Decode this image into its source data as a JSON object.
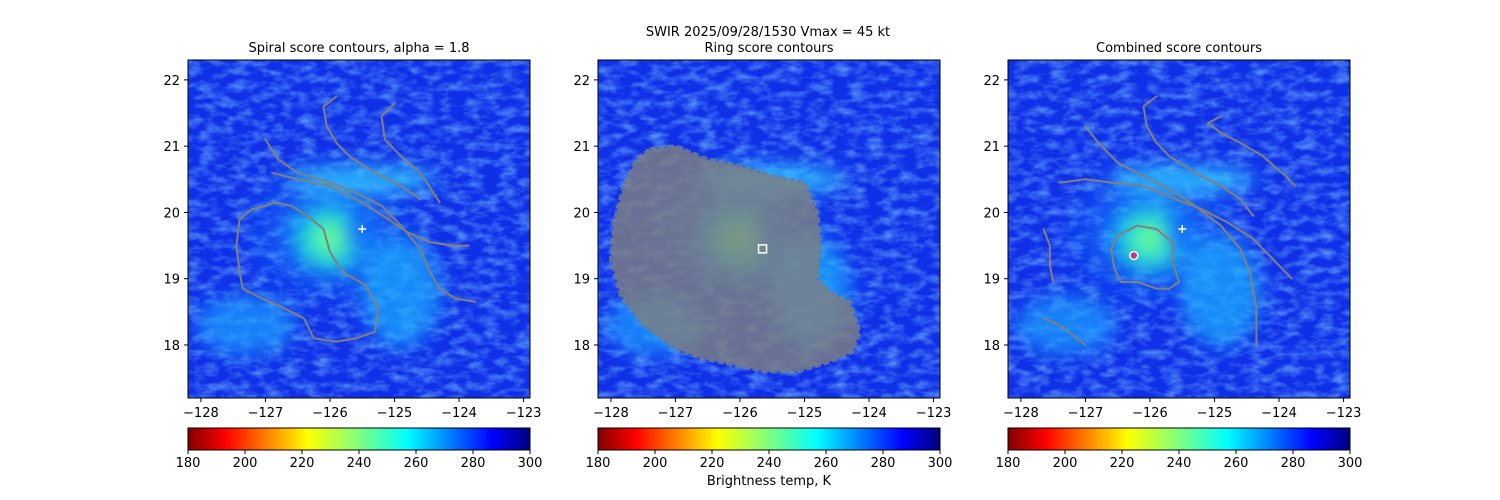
{
  "figure": {
    "suptitle_line1": "SWIR  2025/09/28/1530    Vmax = 45 kt",
    "colorbar_label": "Brightness temp, K"
  },
  "colors": {
    "contour": "#808080",
    "marker_white": "#ffffff",
    "marker_purple": "#a040a0",
    "colormap": "jet_reversed"
  },
  "chart_data": [
    {
      "type": "heatmap",
      "title": "Spiral score contours, alpha =  1.8",
      "xlabel": "",
      "ylabel": "",
      "xlim": [
        -128.2,
        -122.9
      ],
      "ylim": [
        17.2,
        22.3
      ],
      "xticks": [
        -128,
        -127,
        -126,
        -125,
        -124,
        -123
      ],
      "yticks": [
        18,
        19,
        20,
        21,
        22
      ],
      "colorbar": {
        "min": 180,
        "max": 300,
        "ticks": [
          180,
          200,
          220,
          240,
          260,
          280,
          300
        ],
        "label": ""
      },
      "markers": [
        {
          "lon": -125.5,
          "lat": 19.75,
          "symbol": "plus"
        }
      ],
      "contours": [
        [
          [
            -125.9,
            21.75
          ],
          [
            -126.1,
            21.6
          ],
          [
            -126.05,
            21.3
          ],
          [
            -125.9,
            21.05
          ],
          [
            -125.7,
            20.85
          ],
          [
            -125.3,
            20.6
          ],
          [
            -124.9,
            20.4
          ],
          [
            -124.6,
            20.2
          ]
        ],
        [
          [
            -125.0,
            21.65
          ],
          [
            -125.2,
            21.45
          ],
          [
            -125.15,
            21.1
          ],
          [
            -124.9,
            20.85
          ],
          [
            -124.6,
            20.6
          ],
          [
            -124.3,
            20.15
          ]
        ],
        [
          [
            -127.0,
            21.1
          ],
          [
            -126.8,
            20.8
          ],
          [
            -126.5,
            20.6
          ],
          [
            -126.0,
            20.45
          ],
          [
            -125.6,
            20.3
          ],
          [
            -125.2,
            20.1
          ],
          [
            -124.9,
            19.8
          ],
          [
            -124.6,
            19.45
          ],
          [
            -124.45,
            19.1
          ],
          [
            -124.3,
            18.85
          ],
          [
            -124.05,
            18.7
          ],
          [
            -123.75,
            18.65
          ]
        ],
        [
          [
            -126.9,
            20.6
          ],
          [
            -126.5,
            20.5
          ],
          [
            -126.0,
            20.4
          ],
          [
            -125.5,
            20.15
          ],
          [
            -125.1,
            19.9
          ],
          [
            -124.8,
            19.7
          ],
          [
            -124.45,
            19.55
          ],
          [
            -124.1,
            19.5
          ],
          [
            -123.85,
            19.5
          ]
        ],
        [
          [
            -127.0,
            20.1
          ],
          [
            -127.2,
            20.05
          ],
          [
            -127.4,
            19.9
          ],
          [
            -127.45,
            19.5
          ],
          [
            -127.4,
            19.1
          ],
          [
            -127.35,
            18.85
          ],
          [
            -127.05,
            18.7
          ],
          [
            -126.7,
            18.55
          ],
          [
            -126.4,
            18.4
          ],
          [
            -126.25,
            18.1
          ],
          [
            -125.9,
            18.05
          ],
          [
            -125.6,
            18.1
          ],
          [
            -125.3,
            18.2
          ],
          [
            -125.25,
            18.55
          ],
          [
            -125.45,
            18.9
          ],
          [
            -125.8,
            19.1
          ],
          [
            -126.0,
            19.4
          ],
          [
            -126.1,
            19.75
          ],
          [
            -126.35,
            19.95
          ],
          [
            -126.6,
            20.1
          ],
          [
            -126.85,
            20.15
          ],
          [
            -127.0,
            20.1
          ]
        ]
      ]
    },
    {
      "type": "heatmap",
      "title": "Ring score contours",
      "xlabel": "",
      "ylabel": "",
      "xlim": [
        -128.2,
        -122.9
      ],
      "ylim": [
        17.2,
        22.3
      ],
      "xticks": [
        -128,
        -127,
        -126,
        -125,
        -124,
        -123
      ],
      "yticks": [
        18,
        19,
        20,
        21,
        22
      ],
      "colorbar": {
        "min": 180,
        "max": 300,
        "ticks": [
          180,
          200,
          220,
          240,
          260,
          280,
          300
        ],
        "label": "Brightness temp, K"
      },
      "markers": [
        {
          "lon": -125.65,
          "lat": 19.45,
          "symbol": "square"
        }
      ],
      "ring_region": [
        [
          -127.4,
          20.95
        ],
        [
          -127.0,
          21.0
        ],
        [
          -126.5,
          20.8
        ],
        [
          -126.0,
          20.7
        ],
        [
          -125.5,
          20.55
        ],
        [
          -125.0,
          20.45
        ],
        [
          -124.8,
          20.0
        ],
        [
          -124.75,
          19.5
        ],
        [
          -124.8,
          19.0
        ],
        [
          -124.6,
          18.8
        ],
        [
          -124.3,
          18.65
        ],
        [
          -124.15,
          18.2
        ],
        [
          -124.25,
          17.9
        ],
        [
          -124.6,
          17.75
        ],
        [
          -125.1,
          17.6
        ],
        [
          -125.6,
          17.6
        ],
        [
          -126.1,
          17.7
        ],
        [
          -126.6,
          17.8
        ],
        [
          -127.0,
          17.95
        ],
        [
          -127.5,
          18.3
        ],
        [
          -127.85,
          18.75
        ],
        [
          -128.0,
          19.3
        ],
        [
          -127.95,
          19.85
        ],
        [
          -127.8,
          20.4
        ],
        [
          -127.6,
          20.8
        ],
        [
          -127.4,
          20.95
        ]
      ],
      "contours": []
    },
    {
      "type": "heatmap",
      "title": "Combined score contours",
      "xlabel": "",
      "ylabel": "",
      "xlim": [
        -128.2,
        -122.9
      ],
      "ylim": [
        17.2,
        22.3
      ],
      "xticks": [
        -128,
        -127,
        -126,
        -125,
        -124,
        -123
      ],
      "yticks": [
        18,
        19,
        20,
        21,
        22
      ],
      "colorbar": {
        "min": 180,
        "max": 300,
        "ticks": [
          180,
          200,
          220,
          240,
          260,
          280,
          300
        ],
        "label": ""
      },
      "markers": [
        {
          "lon": -125.5,
          "lat": 19.75,
          "symbol": "plus"
        },
        {
          "lon": -126.25,
          "lat": 19.35,
          "symbol": "circle"
        }
      ],
      "contours": [
        [
          [
            -125.9,
            21.75
          ],
          [
            -126.1,
            21.6
          ],
          [
            -126.05,
            21.3
          ],
          [
            -125.9,
            21.05
          ],
          [
            -125.7,
            20.85
          ],
          [
            -125.3,
            20.6
          ],
          [
            -124.9,
            20.4
          ],
          [
            -124.6,
            20.2
          ],
          [
            -124.4,
            19.95
          ]
        ],
        [
          [
            -124.9,
            21.45
          ],
          [
            -125.1,
            21.35
          ],
          [
            -124.9,
            21.2
          ],
          [
            -124.6,
            21.05
          ],
          [
            -124.25,
            20.85
          ],
          [
            -123.9,
            20.55
          ],
          [
            -123.75,
            20.4
          ]
        ],
        [
          [
            -127.0,
            21.3
          ],
          [
            -126.8,
            21.05
          ],
          [
            -126.5,
            20.75
          ],
          [
            -126.1,
            20.55
          ],
          [
            -125.7,
            20.35
          ],
          [
            -125.3,
            20.1
          ],
          [
            -124.9,
            19.8
          ],
          [
            -124.6,
            19.45
          ],
          [
            -124.45,
            19.1
          ],
          [
            -124.35,
            18.55
          ],
          [
            -124.35,
            18.0
          ]
        ],
        [
          [
            -127.4,
            20.45
          ],
          [
            -127.0,
            20.5
          ],
          [
            -126.6,
            20.45
          ],
          [
            -126.1,
            20.4
          ],
          [
            -125.6,
            20.2
          ],
          [
            -125.2,
            20.05
          ],
          [
            -124.8,
            19.85
          ],
          [
            -124.4,
            19.6
          ],
          [
            -124.0,
            19.2
          ],
          [
            -123.8,
            19.0
          ]
        ],
        [
          [
            -126.6,
            19.45
          ],
          [
            -126.5,
            19.65
          ],
          [
            -126.2,
            19.8
          ],
          [
            -125.9,
            19.75
          ],
          [
            -125.65,
            19.55
          ],
          [
            -125.65,
            19.25
          ],
          [
            -125.55,
            18.95
          ],
          [
            -125.7,
            18.85
          ],
          [
            -125.9,
            18.85
          ],
          [
            -126.2,
            18.95
          ],
          [
            -126.45,
            18.95
          ],
          [
            -126.55,
            19.15
          ],
          [
            -126.6,
            19.45
          ]
        ],
        [
          [
            -127.65,
            19.75
          ],
          [
            -127.55,
            19.5
          ],
          [
            -127.55,
            19.2
          ],
          [
            -127.5,
            18.95
          ]
        ],
        [
          [
            -127.65,
            18.4
          ],
          [
            -127.4,
            18.3
          ],
          [
            -127.2,
            18.15
          ],
          [
            -127.0,
            18.0
          ]
        ]
      ]
    }
  ]
}
